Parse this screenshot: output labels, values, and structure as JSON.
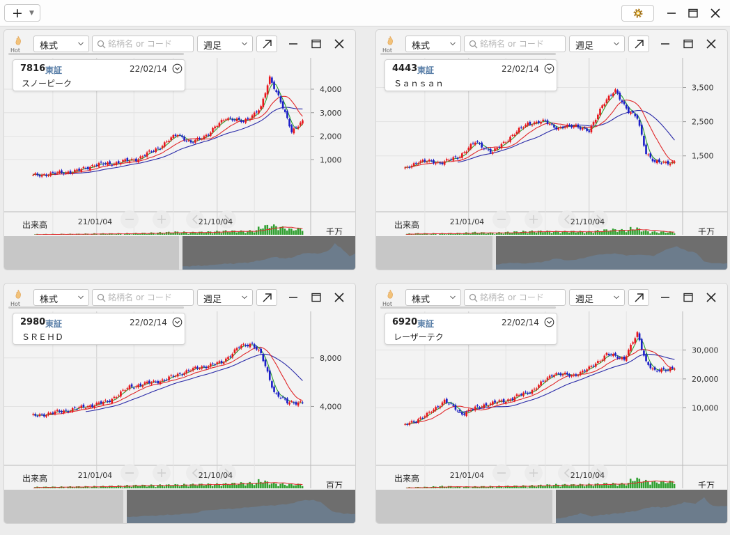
{
  "toolbar": {
    "add_icon": "plus-icon",
    "settings_icon": "gear-icon",
    "window_controls": [
      "minimize-icon",
      "maximize-icon",
      "close-icon"
    ]
  },
  "colors": {
    "up_candle": "#e8161c",
    "down_candle": "#1b1ec8",
    "ma_short": "#2ca02c",
    "ma_mid": "#e0282a",
    "ma_long": "#2a2aa8",
    "volume": "#30a030",
    "navigator_fill": "#6c7f92"
  },
  "panels": [
    {
      "hot_label": "Hot",
      "market_select": "株式",
      "search_placeholder": "銘柄名 or コード",
      "period_select": "週足",
      "code": "7816",
      "exchange": "東証",
      "date": "22/02/14",
      "name": "スノーピーク",
      "volume_label": "出来高",
      "volume_unit": "千万",
      "x_labels": [
        "21/01/04",
        "21/10/04"
      ],
      "chart_data": {
        "type": "candlestick",
        "y_ticks": [
          "1,000",
          "2,000",
          "3,000",
          "4,000"
        ],
        "ylim": [
          0,
          4800
        ],
        "anchors": [
          [
            0,
            320
          ],
          [
            8,
            400
          ],
          [
            20,
            520
          ],
          [
            28,
            780
          ],
          [
            38,
            860
          ],
          [
            48,
            1050
          ],
          [
            58,
            1550
          ],
          [
            66,
            2100
          ],
          [
            72,
            1700
          ],
          [
            80,
            2100
          ],
          [
            88,
            2800
          ],
          [
            96,
            2600
          ],
          [
            104,
            3200
          ],
          [
            108,
            4500
          ],
          [
            112,
            3700
          ],
          [
            118,
            2200
          ],
          [
            122,
            2600
          ]
        ]
      }
    },
    {
      "hot_label": "Hot",
      "market_select": "株式",
      "search_placeholder": "銘柄名 or コード",
      "period_select": "週足",
      "code": "4443",
      "exchange": "東証",
      "date": "22/02/14",
      "name": "Ｓａｎｓａｎ",
      "volume_label": "出来高",
      "volume_unit": "千万",
      "x_labels": [
        "21/01/04",
        "21/10/04"
      ],
      "chart_data": {
        "type": "candlestick",
        "y_ticks": [
          "1,500",
          "2,500",
          "3,500"
        ],
        "ylim": [
          700,
          4000
        ],
        "anchors": [
          [
            0,
            1100
          ],
          [
            6,
            1350
          ],
          [
            16,
            1300
          ],
          [
            24,
            1450
          ],
          [
            32,
            1900
          ],
          [
            40,
            1600
          ],
          [
            48,
            2050
          ],
          [
            56,
            2450
          ],
          [
            64,
            2500
          ],
          [
            70,
            2300
          ],
          [
            78,
            2400
          ],
          [
            84,
            2200
          ],
          [
            90,
            3000
          ],
          [
            96,
            3400
          ],
          [
            102,
            2800
          ],
          [
            106,
            2600
          ],
          [
            110,
            1600
          ],
          [
            114,
            1300
          ]
        ]
      }
    },
    {
      "hot_label": "Hot",
      "market_select": "株式",
      "search_placeholder": "銘柄名 or コード",
      "period_select": "週足",
      "code": "2980",
      "exchange": "東証",
      "date": "22/02/14",
      "name": "ＳＲＥＨＤ",
      "volume_label": "出来高",
      "volume_unit": "百万",
      "x_labels": [
        "21/01/04",
        "21/10/04"
      ],
      "chart_data": {
        "type": "candlestick",
        "y_ticks": [
          "4,000",
          "8,000"
        ],
        "ylim": [
          1500,
          10800
        ],
        "anchors": [
          [
            0,
            3200
          ],
          [
            10,
            3500
          ],
          [
            22,
            3900
          ],
          [
            34,
            4400
          ],
          [
            44,
            5600
          ],
          [
            52,
            5900
          ],
          [
            60,
            6200
          ],
          [
            70,
            6900
          ],
          [
            78,
            7300
          ],
          [
            86,
            7600
          ],
          [
            94,
            8900
          ],
          [
            100,
            9200
          ],
          [
            104,
            8300
          ],
          [
            110,
            5200
          ],
          [
            116,
            4300
          ]
        ]
      }
    },
    {
      "hot_label": "Hot",
      "market_select": "株式",
      "search_placeholder": "銘柄名 or コード",
      "period_select": "週足",
      "code": "6920",
      "exchange": "東証",
      "date": "22/02/14",
      "name": "レーザーテク",
      "volume_label": "出来高",
      "volume_unit": "千万",
      "x_labels": [
        "21/01/04",
        "21/10/04"
      ],
      "chart_data": {
        "type": "candlestick",
        "y_ticks": [
          "10,000",
          "20,000",
          "30,000"
        ],
        "ylim": [
          0,
          39000
        ],
        "anchors": [
          [
            0,
            4000
          ],
          [
            10,
            7500
          ],
          [
            18,
            12500
          ],
          [
            26,
            8000
          ],
          [
            36,
            11000
          ],
          [
            46,
            12500
          ],
          [
            58,
            16000
          ],
          [
            68,
            22000
          ],
          [
            76,
            21000
          ],
          [
            84,
            23500
          ],
          [
            92,
            28500
          ],
          [
            100,
            27000
          ],
          [
            106,
            35500
          ],
          [
            110,
            26000
          ],
          [
            114,
            22500
          ]
        ]
      }
    }
  ]
}
